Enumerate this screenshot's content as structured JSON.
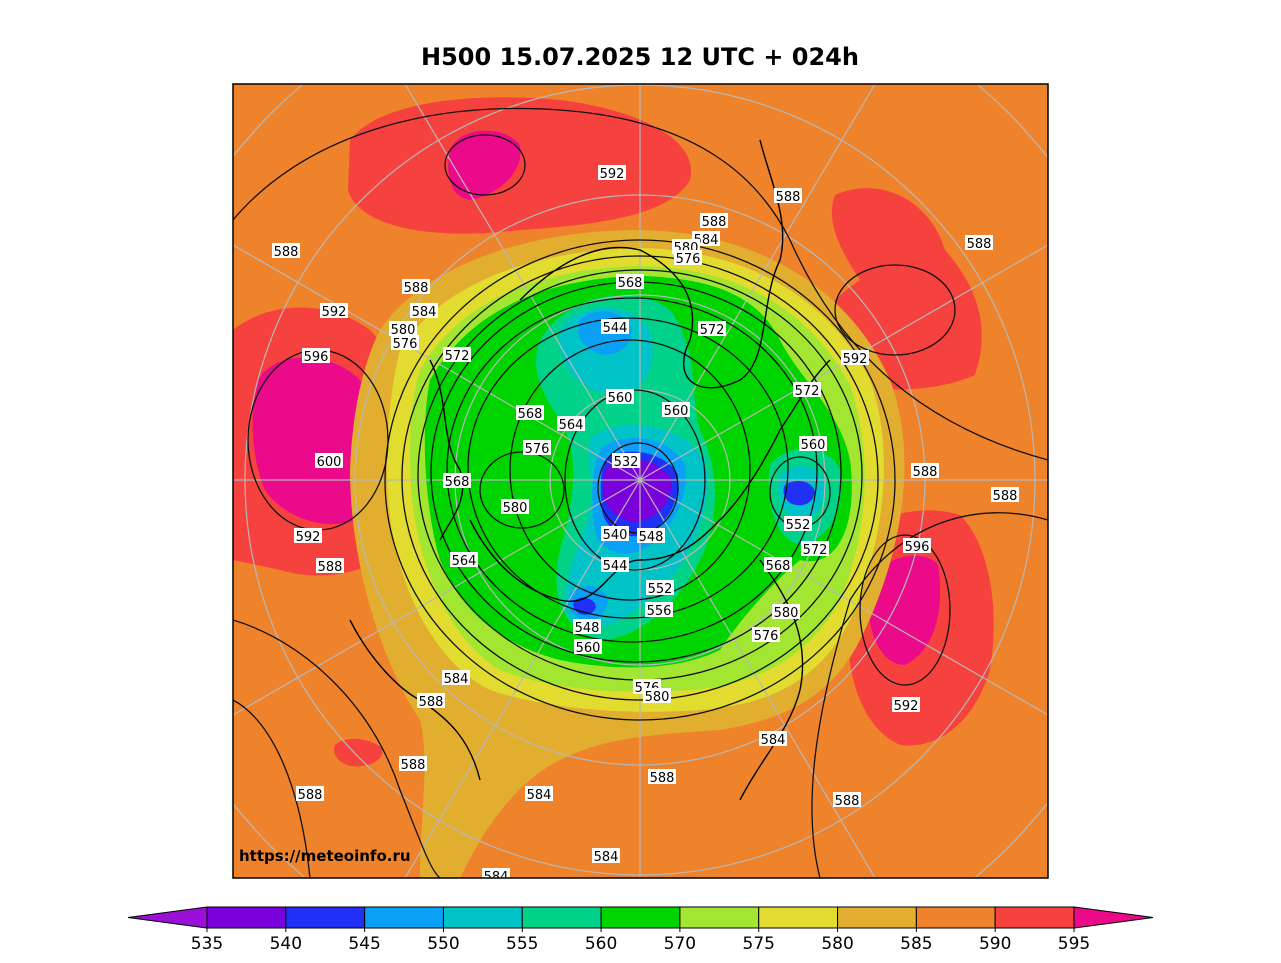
{
  "title": "H500  15.07.2025 12 UTC + 024h",
  "watermark": "https://meteoinfo.ru",
  "colorbar": {
    "ticks": [
      535,
      540,
      545,
      550,
      555,
      560,
      570,
      575,
      580,
      585,
      590,
      595
    ],
    "colors": [
      "#9b10d8",
      "#7a00dc",
      "#2030f5",
      "#0aa0f5",
      "#00c3c8",
      "#00d28a",
      "#00d400",
      "#a2e632",
      "#e2dc30",
      "#e2ae30",
      "#ef832b",
      "#f6423e",
      "#ea0a8a"
    ]
  },
  "contour_labels": [
    592,
    588,
    588,
    584,
    588,
    588,
    580,
    576,
    568,
    588,
    584,
    592,
    580,
    576,
    544,
    572,
    572,
    596,
    592,
    572,
    568,
    560,
    560,
    564,
    576,
    560,
    532,
    600,
    588,
    588,
    568,
    580,
    552,
    540,
    548,
    592,
    596,
    572,
    564,
    588,
    568,
    544,
    552,
    556,
    580,
    548,
    576,
    560,
    584,
    576,
    580,
    588,
    592,
    584,
    588,
    588,
    584,
    588,
    588,
    584,
    584
  ]
}
